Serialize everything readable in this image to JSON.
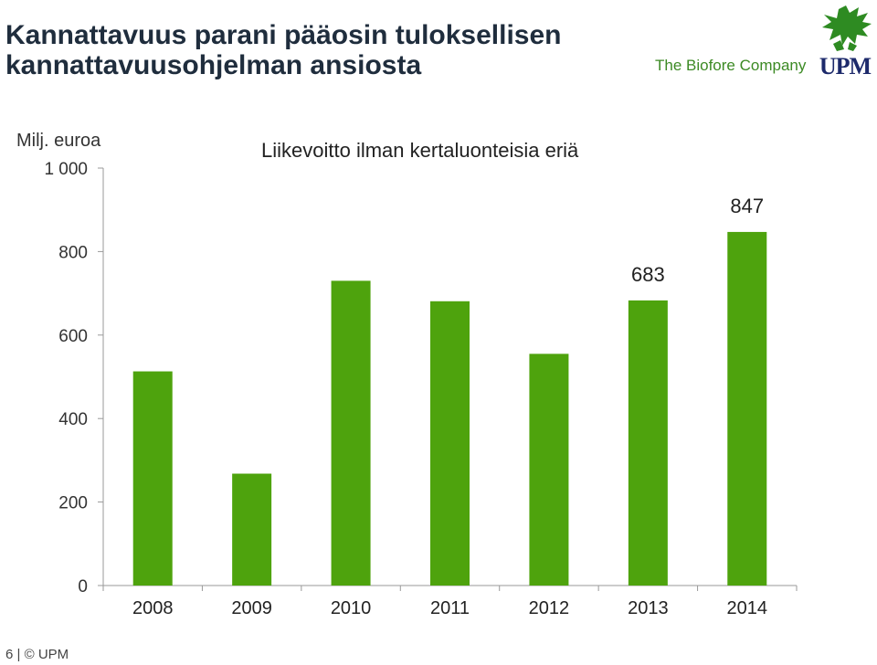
{
  "header": {
    "title_line1": "Kannattavuus parani pääosin tuloksellisen",
    "title_line2": "kannattavuusohjelman ansiosta",
    "tagline": "The Biofore Company",
    "logo_text": "UPM"
  },
  "footer": {
    "page_number": "6",
    "separator": "|",
    "copyright": "© UPM"
  },
  "colors": {
    "bar": "#4ea30d",
    "title": "#1f2d3d",
    "brand_green": "#3c8a24",
    "brand_blue": "#1d2a6b"
  },
  "chart_data": {
    "type": "bar",
    "title": "Liikevoitto ilman kertaluonteisia eriä",
    "unit_label": "Milj. euroa",
    "categories": [
      "2008",
      "2009",
      "2010",
      "2011",
      "2012",
      "2013",
      "2014"
    ],
    "values": [
      513,
      268,
      730,
      681,
      555,
      683,
      847
    ],
    "data_labels": [
      "",
      "",
      "",
      "",
      "",
      "683",
      "847"
    ],
    "ylim": [
      0,
      1000
    ],
    "yticks": [
      0,
      200,
      400,
      600,
      800,
      1000
    ],
    "ytick_labels": [
      "0",
      "200",
      "400",
      "600",
      "800",
      "1 000"
    ],
    "grid": false,
    "legend": "none"
  }
}
